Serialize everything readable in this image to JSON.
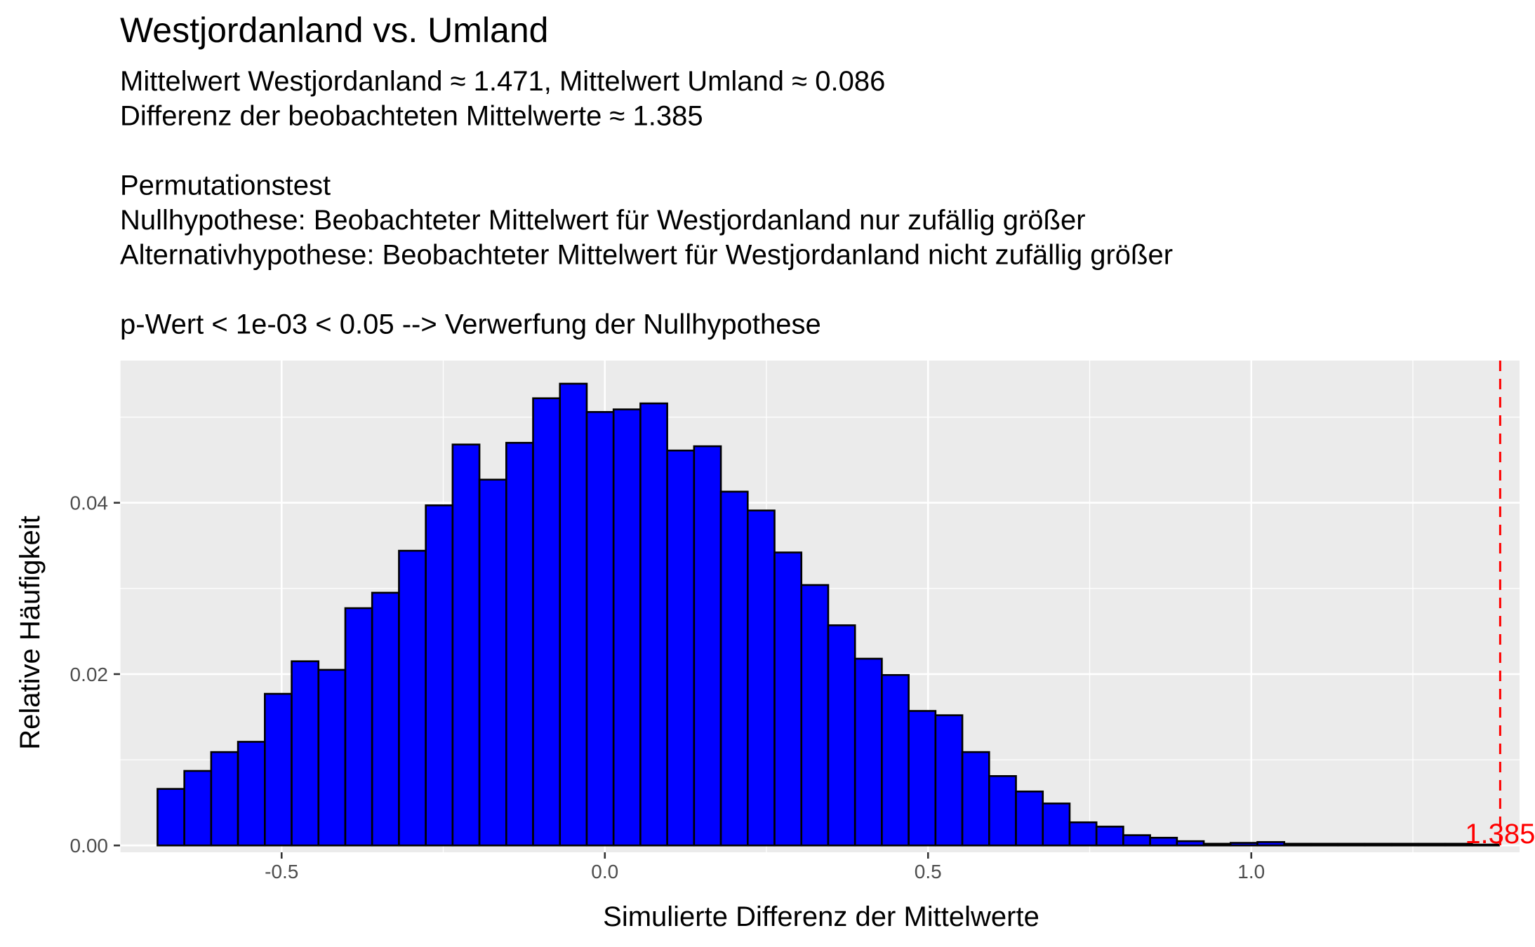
{
  "header": {
    "title": "Westjordanland vs. Umland",
    "subtitle_lines": [
      "Mittelwert Westjordanland ≈ 1.471, Mittelwert Umland ≈ 0.086",
      "Differenz der beobachteten Mittelwerte ≈ 1.385",
      "",
      "Permutationstest",
      "Nullhypothese: Beobachteter Mittelwert für Westjordanland nur zufällig größer",
      "Alternativhypothese: Beobachteter Mittelwert für Westjordanland nicht zufällig größer",
      "",
      "p-Wert < 1e-03 < 0.05 --> Verwerfung der Nullhypothese"
    ]
  },
  "colors": {
    "panel_background": "#ebebeb",
    "grid": "#ffffff",
    "bar_fill": "#0000ff",
    "bar_outline": "#000000",
    "reference_line": "#ff0000",
    "tick_text": "#4d4d4d"
  },
  "chart_data": {
    "type": "bar",
    "title": "Westjordanland vs. Umland",
    "xlabel": "Simulierte Differenz der Mittelwerte",
    "ylabel": "Relative Häufigkeit",
    "xlim": [
      -0.75,
      1.415
    ],
    "ylim": [
      -0.0008,
      0.0566
    ],
    "x_ticks": [
      -0.5,
      0.0,
      0.5,
      1.0
    ],
    "x_tick_labels": [
      "-0.5",
      "0.0",
      "0.5",
      "1.0"
    ],
    "y_ticks": [
      0.0,
      0.02,
      0.04
    ],
    "y_tick_labels": [
      "0.00",
      "0.02",
      "0.04"
    ],
    "grid": true,
    "bin_width": 0.0415,
    "bin_start": -0.692,
    "values": [
      0.0066,
      0.0087,
      0.0109,
      0.0121,
      0.0177,
      0.0215,
      0.0205,
      0.0277,
      0.0295,
      0.0344,
      0.0397,
      0.0468,
      0.0427,
      0.047,
      0.0522,
      0.0539,
      0.0506,
      0.0509,
      0.0516,
      0.0461,
      0.0466,
      0.0413,
      0.0391,
      0.0342,
      0.0304,
      0.0257,
      0.0218,
      0.0199,
      0.0157,
      0.0152,
      0.0109,
      0.0081,
      0.0063,
      0.0049,
      0.0027,
      0.0022,
      0.0012,
      0.0009,
      0.0005,
      0.0002,
      0.0003,
      0.0004,
      0.0002,
      0.0002,
      0.0002,
      0.0002,
      0.0002,
      0.0002,
      0.0002,
      0.0001
    ],
    "reference_line": {
      "x": 1.385,
      "label": "1.385",
      "style": "dashed"
    }
  }
}
